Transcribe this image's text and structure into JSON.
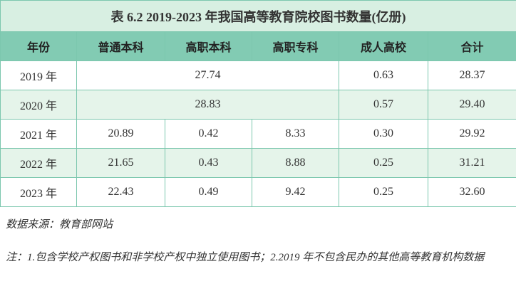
{
  "table": {
    "title": "表 6.2 2019-2023 年我国高等教育院校图书数量(亿册)",
    "header": [
      "年份",
      "普通本科",
      "高职本科",
      "高职专科",
      "成人高校",
      "合计"
    ],
    "rows": [
      [
        "2019 年",
        "27.74",
        "0.63",
        "28.37"
      ],
      [
        "2020 年",
        "28.83",
        "0.57",
        "29.40"
      ],
      [
        "2021 年",
        "20.89",
        "0.42",
        "8.33",
        "0.30",
        "29.92"
      ],
      [
        "2022 年",
        "21.65",
        "0.43",
        "8.88",
        "0.25",
        "31.21"
      ],
      [
        "2023 年",
        "22.43",
        "0.49",
        "9.42",
        "0.25",
        "32.60"
      ]
    ]
  },
  "source": "数据来源：教育部网站",
  "note": "注：1.包含学校产权图书和非学校产权中独立使用图书；2.2019 年不包含民办的其他高等教育机构数据"
}
